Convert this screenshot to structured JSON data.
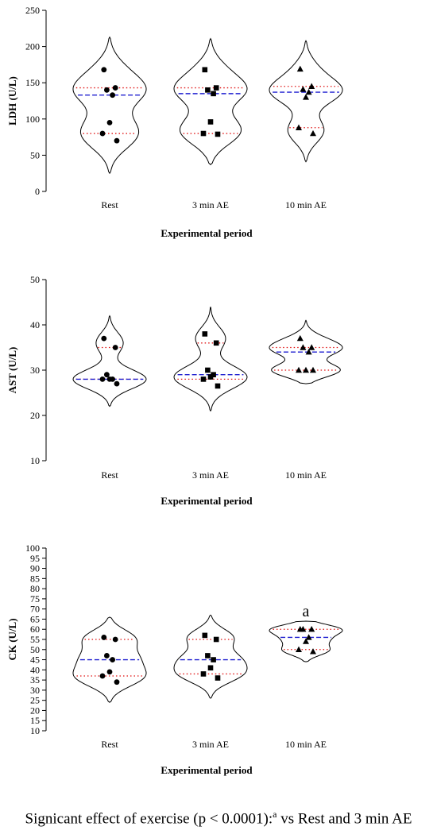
{
  "caption": {
    "text_before": "Signicant effect of exercise (p < 0.0001):",
    "superscript": "a",
    "text_after": " vs Rest and 3 min AE"
  },
  "colors": {
    "median_line": "#1f1fd0",
    "quartile_line": "#e01010",
    "outline": "#000000"
  },
  "chart_data": [
    {
      "type": "violin",
      "ylabel": "LDH (U/L)",
      "xlabel": "Experimental period",
      "ylim": [
        0,
        250
      ],
      "yticks": [
        0,
        50,
        100,
        150,
        200,
        250
      ],
      "categories": [
        "Rest",
        "3 min AE",
        "10 min AE"
      ],
      "markers": [
        "circle",
        "square",
        "triangle"
      ],
      "points": [
        [
          168,
          143,
          140,
          133,
          95,
          80,
          70
        ],
        [
          168,
          143,
          140,
          135,
          96,
          80,
          79
        ],
        [
          169,
          145,
          141,
          137,
          130,
          88,
          80
        ]
      ],
      "median": [
        133,
        135,
        137
      ],
      "quartiles": [
        [
          80,
          143
        ],
        [
          80,
          143
        ],
        [
          88,
          145
        ]
      ],
      "violin_range": [
        [
          25,
          213
        ],
        [
          37,
          211
        ],
        [
          41,
          208
        ]
      ],
      "annotations": []
    },
    {
      "type": "violin",
      "ylabel": "AST (U/L)",
      "xlabel": "Experimental period",
      "ylim": [
        10,
        50
      ],
      "yticks": [
        10,
        20,
        30,
        40,
        50
      ],
      "categories": [
        "Rest",
        "3 min AE",
        "10 min AE"
      ],
      "markers": [
        "circle",
        "square",
        "triangle"
      ],
      "points": [
        [
          37,
          35,
          29,
          28,
          28,
          28,
          27
        ],
        [
          38,
          36,
          30,
          29,
          28.5,
          28,
          26.5
        ],
        [
          37,
          35,
          35,
          34,
          30,
          30,
          30
        ]
      ],
      "median": [
        28,
        29,
        34
      ],
      "quartiles": [
        [
          28,
          35
        ],
        [
          28,
          36
        ],
        [
          30,
          35
        ]
      ],
      "violin_range": [
        [
          22,
          42
        ],
        [
          21,
          44
        ],
        [
          27,
          41
        ]
      ],
      "annotations": []
    },
    {
      "type": "violin",
      "ylabel": "CK (U/L)",
      "xlabel": "Experimental period",
      "ylim": [
        10,
        100
      ],
      "yticks": [
        10,
        15,
        20,
        25,
        30,
        35,
        40,
        45,
        50,
        55,
        60,
        65,
        70,
        75,
        80,
        85,
        90,
        95,
        100
      ],
      "categories": [
        "Rest",
        "3 min AE",
        "10 min AE"
      ],
      "markers": [
        "circle",
        "square",
        "triangle"
      ],
      "points": [
        [
          56,
          55,
          47,
          45,
          39,
          37,
          34
        ],
        [
          57,
          55,
          47,
          45,
          41,
          38,
          36
        ],
        [
          60,
          60,
          60,
          56,
          54,
          50,
          49
        ]
      ],
      "median": [
        45,
        45,
        56
      ],
      "quartiles": [
        [
          37,
          55
        ],
        [
          38,
          55
        ],
        [
          50,
          60
        ]
      ],
      "violin_range": [
        [
          24,
          66
        ],
        [
          26,
          67
        ],
        [
          44,
          64
        ]
      ],
      "annotations": [
        {
          "category": "10 min AE",
          "text": "a"
        }
      ]
    }
  ]
}
